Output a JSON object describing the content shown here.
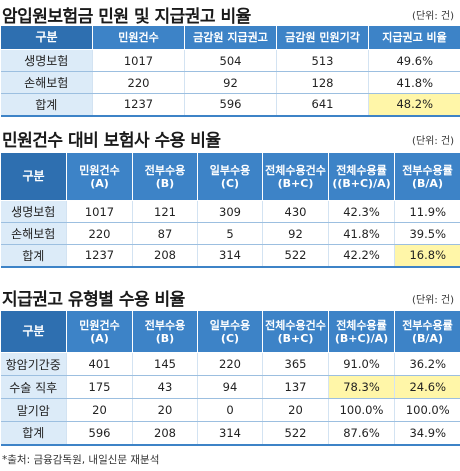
{
  "section1": {
    "title": "암입원보험금 민원 및 지급권고 비율",
    "unit": "(단위: 건)",
    "headers": [
      "구분",
      "민원건수",
      "금감원 지급권고",
      "금감원 민원기각",
      "지급권고 비율"
    ],
    "rows": [
      [
        "생명보험",
        "1017",
        "504",
        "513",
        "49.6%"
      ],
      [
        "손해보험",
        "220",
        "92",
        "128",
        "41.8%"
      ],
      [
        "합계",
        "1237",
        "596",
        "641",
        "48.2%"
      ]
    ]
  },
  "section2": {
    "title": "민원건수 대비 보험사 수용 비율",
    "unit": "(단위: 건)",
    "headers": [
      [
        "구분",
        ""
      ],
      [
        "민원건수",
        "(A)"
      ],
      [
        "전부수용",
        "(B)"
      ],
      [
        "일부수용",
        "(C)"
      ],
      [
        "전체수용건수",
        "(B+C)"
      ],
      [
        "전체수용률",
        "((B+C)/A)"
      ],
      [
        "전부수용률",
        "(B/A)"
      ]
    ],
    "rows": [
      [
        "생명보험",
        "1017",
        "121",
        "309",
        "430",
        "42.3%",
        "11.9%"
      ],
      [
        "손해보험",
        "220",
        "87",
        "5",
        "92",
        "41.8%",
        "39.5%"
      ],
      [
        "합계",
        "1237",
        "208",
        "314",
        "522",
        "42.2%",
        "16.8%"
      ]
    ]
  },
  "section3": {
    "title": "지급권고 유형별 수용 비율",
    "unit": "(단위: 건)",
    "headers": [
      [
        "구분",
        ""
      ],
      [
        "민원건수",
        "(A)"
      ],
      [
        "전부수용",
        "(B)"
      ],
      [
        "일부수용",
        "(C)"
      ],
      [
        "전체수용건수",
        "(B+C)"
      ],
      [
        "전체수용률",
        "(B+C)/A)"
      ],
      [
        "전부수용률",
        "(B/A)"
      ]
    ],
    "rows": [
      [
        "항암기간중",
        "401",
        "145",
        "220",
        "365",
        "91.0%",
        "36.2%"
      ],
      [
        "수술 직후",
        "175",
        "43",
        "94",
        "137",
        "78.3%",
        "24.6%"
      ],
      [
        "말기암",
        "20",
        "20",
        "0",
        "20",
        "100.0%",
        "100.0%"
      ],
      [
        "합계",
        "596",
        "208",
        "314",
        "522",
        "87.6%",
        "34.9%"
      ]
    ]
  },
  "source": "*출처: 금융감독원, 내일신문 재분석",
  "colors": {
    "header": "#3d83c7",
    "label_bg": "#dcebf8",
    "highlight": "#fff6a8"
  }
}
